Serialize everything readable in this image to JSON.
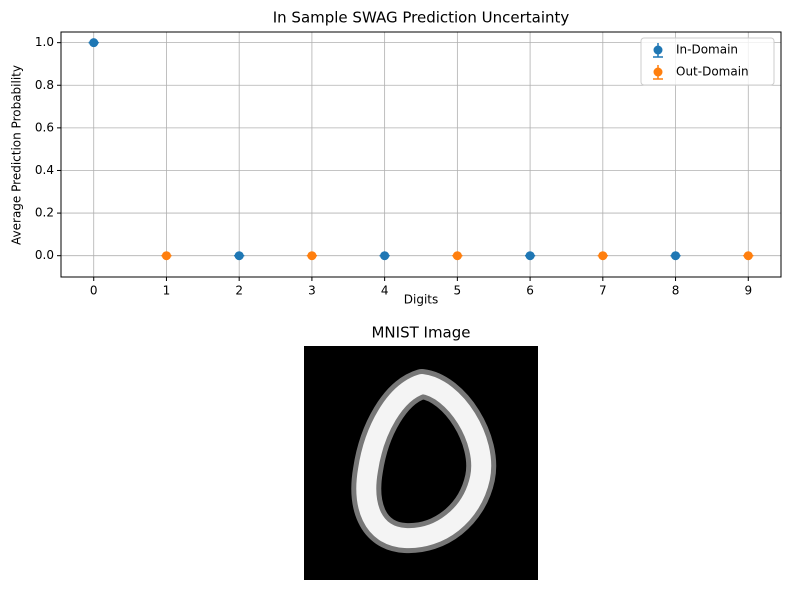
{
  "chart_data": [
    {
      "type": "errorbar",
      "title": "In Sample SWAG Prediction Uncertainty",
      "x_label": "Digits",
      "y_label": "Average Prediction Probability",
      "series": [
        {
          "name": "In-Domain",
          "color": "#1f77b4",
          "x": [
            0,
            2,
            4,
            6,
            8
          ],
          "values": [
            1.0,
            0,
            0,
            0,
            0
          ],
          "errors": [
            0,
            0,
            0,
            0,
            0
          ]
        },
        {
          "name": "Out-Domain",
          "color": "#ff7f0e",
          "x": [
            1,
            3,
            5,
            7,
            9
          ],
          "values": [
            0,
            0,
            0,
            0,
            0
          ],
          "errors": [
            0,
            0,
            0,
            0,
            0
          ]
        }
      ],
      "xlim": [
        -0.45,
        9.45
      ],
      "xticks": [
        0,
        1,
        2,
        3,
        4,
        5,
        6,
        7,
        8,
        9
      ],
      "ylim": [
        -0.1,
        1.05
      ],
      "yticks": [
        {
          "value": 0,
          "label": "0.0"
        },
        0.2,
        0.4,
        0.6,
        0.8,
        {
          "value": 1,
          "label": "1.0"
        }
      ],
      "grid": true,
      "legend": "upper right"
    },
    {
      "type": "image",
      "title": "MNIST Image"
    }
  ]
}
